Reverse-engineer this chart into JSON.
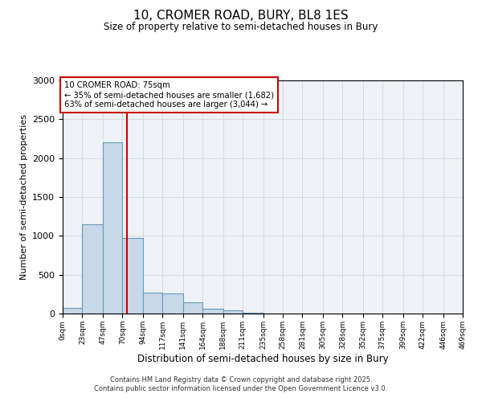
{
  "title": "10, CROMER ROAD, BURY, BL8 1ES",
  "subtitle": "Size of property relative to semi-detached houses in Bury",
  "xlabel": "Distribution of semi-detached houses by size in Bury",
  "ylabel": "Number of semi-detached properties",
  "annotation_line1": "10 CROMER ROAD: 75sqm",
  "annotation_line2": "← 35% of semi-detached houses are smaller (1,682)",
  "annotation_line3": "63% of semi-detached houses are larger (3,044) →",
  "bin_edges": [
    0,
    23,
    47,
    70,
    94,
    117,
    141,
    164,
    188,
    211,
    235,
    258,
    281,
    305,
    328,
    352,
    375,
    399,
    422,
    446,
    469
  ],
  "bin_labels": [
    "0sqm",
    "23sqm",
    "47sqm",
    "70sqm",
    "94sqm",
    "117sqm",
    "141sqm",
    "164sqm",
    "188sqm",
    "211sqm",
    "235sqm",
    "258sqm",
    "281sqm",
    "305sqm",
    "328sqm",
    "352sqm",
    "375sqm",
    "399sqm",
    "422sqm",
    "446sqm",
    "469sqm"
  ],
  "bar_values": [
    75,
    1150,
    2200,
    975,
    270,
    260,
    140,
    65,
    40,
    10,
    5,
    2,
    2,
    1,
    1,
    0,
    0,
    0,
    0,
    0
  ],
  "bar_color": "#c8d8e8",
  "bar_edge_color": "#6699bb",
  "vline_x": 75,
  "vline_color": "#cc0000",
  "ylim": [
    0,
    3000
  ],
  "yticks": [
    0,
    500,
    1000,
    1500,
    2000,
    2500,
    3000
  ],
  "grid_color": "#d0d8e0",
  "bg_color": "#eef2f6",
  "annotation_box_color": "#cc0000",
  "footer_line1": "Contains HM Land Registry data © Crown copyright and database right 2025.",
  "footer_line2": "Contains public sector information licensed under the Open Government Licence v3.0."
}
